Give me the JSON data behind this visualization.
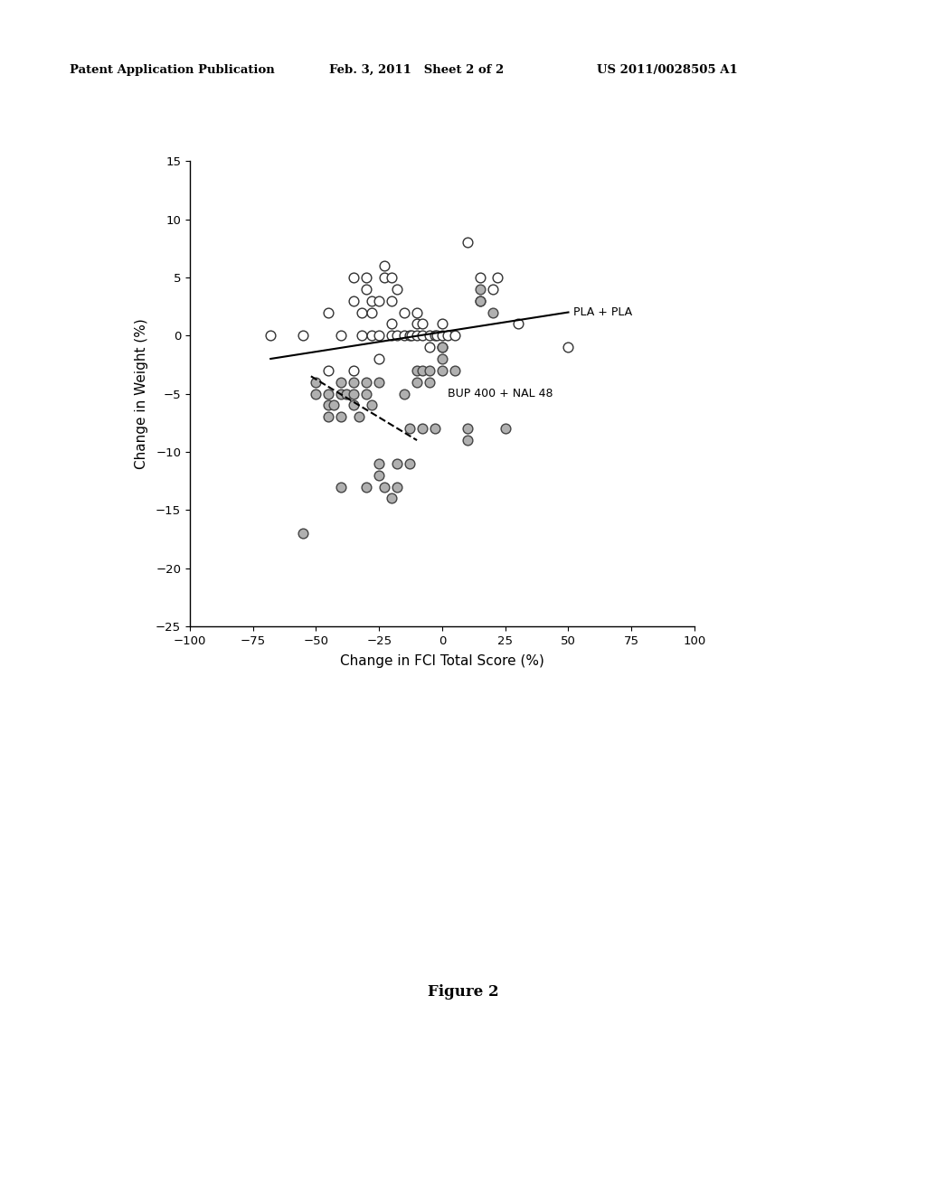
{
  "header_left": "Patent Application Publication",
  "header_mid": "Feb. 3, 2011   Sheet 2 of 2",
  "header_right": "US 2011/0028505 A1",
  "figure_caption": "Figure 2",
  "xlabel": "Change in FCI Total Score (%)",
  "ylabel": "Change in Weight (%)",
  "xlim": [
    -100,
    100
  ],
  "ylim": [
    -25,
    15
  ],
  "xticks": [
    -100,
    -75,
    -50,
    -25,
    0,
    25,
    50,
    75,
    100
  ],
  "yticks": [
    -25,
    -20,
    -15,
    -10,
    -5,
    0,
    5,
    10,
    15
  ],
  "pla_label": "PLA + PLA",
  "bup_label": "BUP 400 + NAL 48",
  "pla_line_x": [
    -68,
    50
  ],
  "pla_line_y": [
    -2.0,
    2.0
  ],
  "bup_line_x": [
    -52,
    -10
  ],
  "bup_line_y": [
    -3.5,
    -9.0
  ],
  "pla_points": [
    [
      -68,
      0
    ],
    [
      -55,
      0
    ],
    [
      -45,
      -3
    ],
    [
      -45,
      2
    ],
    [
      -40,
      0
    ],
    [
      -35,
      -3
    ],
    [
      -35,
      3
    ],
    [
      -35,
      5
    ],
    [
      -32,
      0
    ],
    [
      -32,
      2
    ],
    [
      -30,
      4
    ],
    [
      -30,
      5
    ],
    [
      -28,
      0
    ],
    [
      -28,
      2
    ],
    [
      -28,
      3
    ],
    [
      -25,
      -2
    ],
    [
      -25,
      0
    ],
    [
      -25,
      3
    ],
    [
      -23,
      5
    ],
    [
      -23,
      6
    ],
    [
      -20,
      0
    ],
    [
      -20,
      1
    ],
    [
      -20,
      3
    ],
    [
      -20,
      5
    ],
    [
      -18,
      0
    ],
    [
      -18,
      4
    ],
    [
      -15,
      0
    ],
    [
      -15,
      2
    ],
    [
      -13,
      0
    ],
    [
      -12,
      0
    ],
    [
      -10,
      0
    ],
    [
      -10,
      1
    ],
    [
      -10,
      2
    ],
    [
      -8,
      0
    ],
    [
      -8,
      1
    ],
    [
      -5,
      0
    ],
    [
      -5,
      -1
    ],
    [
      -3,
      0
    ],
    [
      -2,
      0
    ],
    [
      0,
      0
    ],
    [
      0,
      -1
    ],
    [
      0,
      1
    ],
    [
      2,
      0
    ],
    [
      5,
      0
    ],
    [
      10,
      8
    ],
    [
      15,
      3
    ],
    [
      15,
      5
    ],
    [
      20,
      4
    ],
    [
      22,
      5
    ],
    [
      30,
      1
    ],
    [
      50,
      -1
    ]
  ],
  "bup_points": [
    [
      -55,
      -17
    ],
    [
      -50,
      -4
    ],
    [
      -50,
      -5
    ],
    [
      -45,
      -5
    ],
    [
      -45,
      -6
    ],
    [
      -45,
      -7
    ],
    [
      -43,
      -6
    ],
    [
      -40,
      -4
    ],
    [
      -40,
      -5
    ],
    [
      -40,
      -7
    ],
    [
      -40,
      -13
    ],
    [
      -38,
      -5
    ],
    [
      -35,
      -4
    ],
    [
      -35,
      -5
    ],
    [
      -35,
      -6
    ],
    [
      -33,
      -7
    ],
    [
      -30,
      -4
    ],
    [
      -30,
      -5
    ],
    [
      -30,
      -13
    ],
    [
      -28,
      -6
    ],
    [
      -25,
      -4
    ],
    [
      -25,
      -11
    ],
    [
      -25,
      -12
    ],
    [
      -23,
      -13
    ],
    [
      -20,
      -14
    ],
    [
      -18,
      -11
    ],
    [
      -18,
      -13
    ],
    [
      -15,
      -5
    ],
    [
      -13,
      -8
    ],
    [
      -13,
      -11
    ],
    [
      -10,
      -3
    ],
    [
      -10,
      -4
    ],
    [
      -8,
      -3
    ],
    [
      -8,
      -8
    ],
    [
      -5,
      -3
    ],
    [
      -5,
      -4
    ],
    [
      -3,
      -8
    ],
    [
      0,
      -1
    ],
    [
      0,
      -2
    ],
    [
      0,
      -3
    ],
    [
      5,
      -3
    ],
    [
      10,
      -8
    ],
    [
      10,
      -9
    ],
    [
      15,
      3
    ],
    [
      15,
      4
    ],
    [
      20,
      2
    ],
    [
      25,
      -8
    ]
  ],
  "background_color": "#ffffff",
  "plot_bg_color": "#ffffff",
  "scatter_size": 60,
  "pla_color": "white",
  "pla_edge": "#333333",
  "bup_color": "#b0b0b0",
  "bup_edge": "#444444"
}
